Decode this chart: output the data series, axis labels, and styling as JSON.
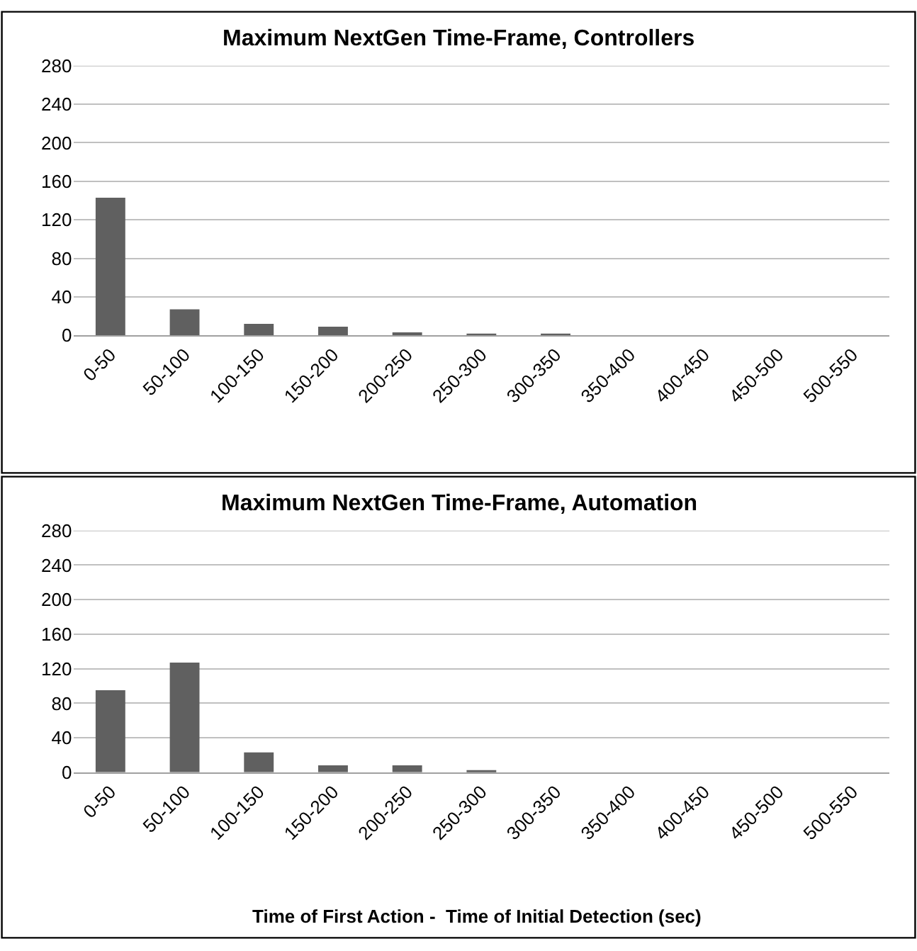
{
  "chart_data": [
    {
      "type": "bar",
      "title": "Maximum NextGen Time-Frame, Controllers",
      "categories": [
        "0-50",
        "50-100",
        "100-150",
        "150-200",
        "200-250",
        "250-300",
        "300-350",
        "350-400",
        "400-450",
        "450-500",
        "500-550"
      ],
      "series": [
        {
          "color": "#606060",
          "values": [
            143,
            27,
            12,
            9,
            3,
            1,
            1,
            0,
            0,
            0,
            0
          ]
        }
      ],
      "ylim": [
        0,
        280
      ],
      "yticks": [
        0,
        40,
        80,
        120,
        160,
        200,
        240,
        280
      ],
      "grid": "y"
    },
    {
      "type": "bar",
      "title": "Maximum NextGen Time-Frame, Automation",
      "xlabel": "Time of First Action -  Time of Initial Detection (sec)",
      "categories": [
        "0-50",
        "50-100",
        "100-150",
        "150-200",
        "200-250",
        "250-300",
        "300-350",
        "350-400",
        "400-450",
        "450-500",
        "500-550"
      ],
      "series": [
        {
          "color": "#606060",
          "values": [
            95,
            127,
            23,
            8,
            8,
            1,
            0,
            0,
            0,
            0,
            0
          ]
        }
      ],
      "ylim": [
        0,
        280
      ],
      "yticks": [
        0,
        40,
        80,
        120,
        160,
        200,
        240,
        280
      ],
      "grid": "y"
    }
  ]
}
